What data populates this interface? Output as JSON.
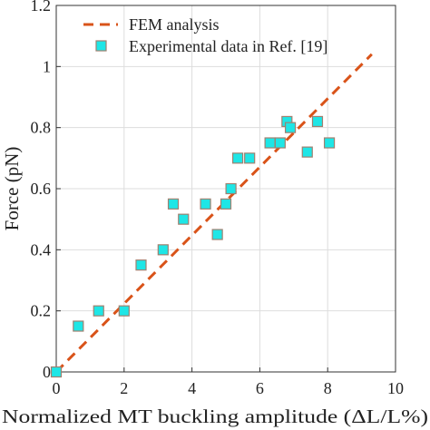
{
  "chart_data": {
    "type": "scatter",
    "xlabel": "Normalized MT buckling amplitude (ΔL/L%)",
    "ylabel": "Force (pN)",
    "xlim": [
      0,
      10
    ],
    "ylim": [
      0,
      1.2
    ],
    "x_ticks": [
      "0",
      "2",
      "4",
      "6",
      "8",
      "10"
    ],
    "y_ticks": [
      "0",
      "0.2",
      "0.4",
      "0.6",
      "0.8",
      "1",
      "1.2"
    ],
    "grid": true,
    "legend_position": "top-left",
    "colors": {
      "fem_line": "#d95319",
      "marker_fill": "#1ee6e6",
      "marker_edge": "#a08070",
      "grid": "#dddddd",
      "axis": "#333333"
    },
    "series": [
      {
        "name": "FEM analysis",
        "kind": "line",
        "style": "dashed",
        "x": [
          0,
          9.3
        ],
        "y": [
          0,
          1.04
        ]
      },
      {
        "name": "Experimental data in Ref. [19]",
        "kind": "scatter",
        "marker": "square",
        "x": [
          0.0,
          0.65,
          1.25,
          2.0,
          2.5,
          3.15,
          3.45,
          3.75,
          4.4,
          4.75,
          5.0,
          5.15,
          5.35,
          5.7,
          6.3,
          6.6,
          6.8,
          6.9,
          7.4,
          7.7,
          8.05
        ],
        "y": [
          0.0,
          0.15,
          0.2,
          0.2,
          0.35,
          0.4,
          0.55,
          0.5,
          0.55,
          0.45,
          0.55,
          0.6,
          0.7,
          0.7,
          0.75,
          0.75,
          0.82,
          0.8,
          0.72,
          0.82,
          0.75
        ]
      }
    ]
  }
}
